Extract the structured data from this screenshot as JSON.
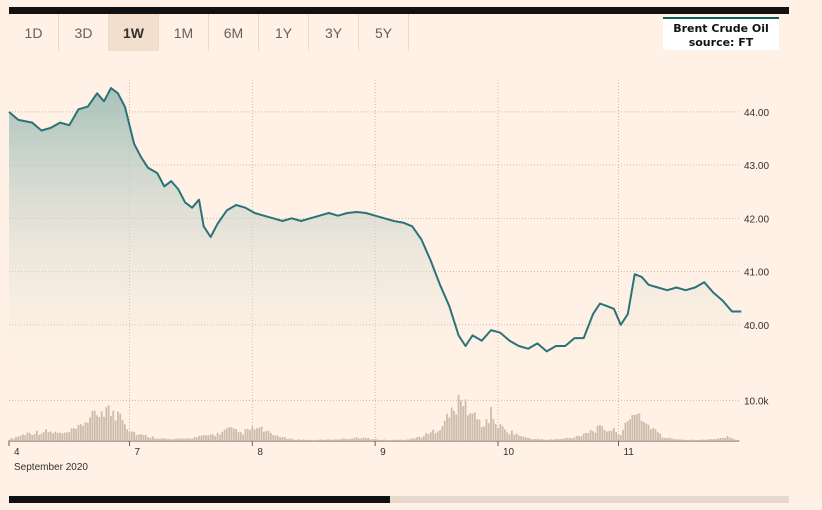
{
  "tabs": [
    {
      "label": "1D",
      "active": false
    },
    {
      "label": "3D",
      "active": false
    },
    {
      "label": "1W",
      "active": true
    },
    {
      "label": "1M",
      "active": false
    },
    {
      "label": "6M",
      "active": false
    },
    {
      "label": "1Y",
      "active": false
    },
    {
      "label": "3Y",
      "active": false
    },
    {
      "label": "5Y",
      "active": false
    }
  ],
  "legend": {
    "line1": "Brent Crude Oil",
    "line2": "source: FT"
  },
  "colors": {
    "line": "#2b7379",
    "area_top": "#9ebcb5",
    "volume": "#cdbcab",
    "background": "#fff1e5"
  },
  "scroll": {
    "position_fraction": 0.488
  },
  "chart_data": {
    "type": "line",
    "y_ticks": [
      {
        "value": 44,
        "label": "44.00"
      },
      {
        "value": 43,
        "label": "43.00"
      },
      {
        "value": 42,
        "label": "42.00"
      },
      {
        "value": 41,
        "label": "41.00"
      },
      {
        "value": 40,
        "label": "40.00"
      }
    ],
    "ylim": [
      39.3,
      44.6
    ],
    "volume_tick": {
      "value": 10000,
      "label": "10.0k"
    },
    "volume_max": 17000,
    "x_ticks": [
      {
        "label": "4",
        "sub": "September 2020",
        "index": 0
      },
      {
        "label": "7",
        "index": 52
      },
      {
        "label": "8",
        "index": 105
      },
      {
        "label": "9",
        "index": 158
      },
      {
        "label": "10",
        "index": 211
      },
      {
        "label": "11",
        "index": 263
      }
    ],
    "x_count": 316,
    "grid": true,
    "series": [
      {
        "values": [
          [
            0,
            44.0
          ],
          [
            4,
            43.85
          ],
          [
            10,
            43.8
          ],
          [
            14,
            43.65
          ],
          [
            18,
            43.7
          ],
          [
            22,
            43.8
          ],
          [
            26,
            43.75
          ],
          [
            30,
            44.05
          ],
          [
            34,
            44.1
          ],
          [
            38,
            44.35
          ],
          [
            41,
            44.2
          ],
          [
            44,
            44.45
          ],
          [
            47,
            44.35
          ],
          [
            50,
            44.1
          ],
          [
            54,
            43.4
          ],
          [
            57,
            43.15
          ],
          [
            60,
            42.95
          ],
          [
            64,
            42.85
          ],
          [
            67,
            42.6
          ],
          [
            70,
            42.7
          ],
          [
            73,
            42.55
          ],
          [
            76,
            42.3
          ],
          [
            79,
            42.2
          ],
          [
            82,
            42.35
          ],
          [
            84,
            41.85
          ],
          [
            87,
            41.65
          ],
          [
            90,
            41.9
          ],
          [
            94,
            42.15
          ],
          [
            98,
            42.25
          ],
          [
            102,
            42.2
          ],
          [
            106,
            42.1
          ],
          [
            110,
            42.05
          ],
          [
            114,
            42.0
          ],
          [
            118,
            41.95
          ],
          [
            122,
            42.0
          ],
          [
            126,
            41.95
          ],
          [
            130,
            42.0
          ],
          [
            134,
            42.05
          ],
          [
            138,
            42.1
          ],
          [
            142,
            42.05
          ],
          [
            146,
            42.1
          ],
          [
            150,
            42.12
          ],
          [
            154,
            42.1
          ],
          [
            158,
            42.05
          ],
          [
            162,
            42.0
          ],
          [
            166,
            41.95
          ],
          [
            170,
            41.92
          ],
          [
            174,
            41.85
          ],
          [
            178,
            41.6
          ],
          [
            182,
            41.2
          ],
          [
            186,
            40.75
          ],
          [
            190,
            40.35
          ],
          [
            194,
            39.8
          ],
          [
            197,
            39.6
          ],
          [
            200,
            39.8
          ],
          [
            204,
            39.7
          ],
          [
            208,
            39.9
          ],
          [
            212,
            39.85
          ],
          [
            216,
            39.7
          ],
          [
            220,
            39.6
          ],
          [
            224,
            39.55
          ],
          [
            228,
            39.65
          ],
          [
            232,
            39.5
          ],
          [
            236,
            39.6
          ],
          [
            240,
            39.6
          ],
          [
            244,
            39.75
          ],
          [
            248,
            39.75
          ],
          [
            252,
            40.2
          ],
          [
            255,
            40.4
          ],
          [
            258,
            40.35
          ],
          [
            261,
            40.3
          ],
          [
            264,
            40.0
          ],
          [
            267,
            40.2
          ],
          [
            270,
            40.95
          ],
          [
            273,
            40.9
          ],
          [
            276,
            40.75
          ],
          [
            280,
            40.7
          ],
          [
            284,
            40.65
          ],
          [
            288,
            40.7
          ],
          [
            292,
            40.65
          ],
          [
            296,
            40.7
          ],
          [
            300,
            40.8
          ],
          [
            304,
            40.6
          ],
          [
            308,
            40.45
          ],
          [
            312,
            40.25
          ],
          [
            316,
            40.25
          ]
        ]
      }
    ],
    "volume": [
      [
        0,
        500
      ],
      [
        8,
        2500
      ],
      [
        16,
        3000
      ],
      [
        24,
        2200
      ],
      [
        30,
        4000
      ],
      [
        34,
        7000
      ],
      [
        38,
        8000
      ],
      [
        40,
        10000
      ],
      [
        42,
        10500
      ],
      [
        44,
        9000
      ],
      [
        46,
        7500
      ],
      [
        48,
        11000
      ],
      [
        50,
        6000
      ],
      [
        52,
        3500
      ],
      [
        56,
        2000
      ],
      [
        60,
        1500
      ],
      [
        64,
        1000
      ],
      [
        70,
        500
      ],
      [
        76,
        800
      ],
      [
        82,
        1300
      ],
      [
        86,
        1800
      ],
      [
        90,
        2200
      ],
      [
        95,
        3800
      ],
      [
        100,
        2500
      ],
      [
        106,
        4000
      ],
      [
        110,
        3500
      ],
      [
        113,
        2000
      ],
      [
        117,
        1500
      ],
      [
        120,
        700
      ],
      [
        126,
        400
      ],
      [
        132,
        300
      ],
      [
        140,
        500
      ],
      [
        148,
        900
      ],
      [
        152,
        1100
      ],
      [
        158,
        500
      ],
      [
        164,
        300
      ],
      [
        170,
        400
      ],
      [
        176,
        1000
      ],
      [
        182,
        2500
      ],
      [
        186,
        4500
      ],
      [
        190,
        8000
      ],
      [
        193,
        11000
      ],
      [
        196,
        12500
      ],
      [
        199,
        9000
      ],
      [
        202,
        7000
      ],
      [
        205,
        5000
      ],
      [
        208,
        8500
      ],
      [
        211,
        5000
      ],
      [
        214,
        3500
      ],
      [
        218,
        2500
      ],
      [
        222,
        1200
      ],
      [
        226,
        700
      ],
      [
        232,
        400
      ],
      [
        238,
        600
      ],
      [
        244,
        1200
      ],
      [
        250,
        3000
      ],
      [
        255,
        4000
      ],
      [
        260,
        3500
      ],
      [
        264,
        2500
      ],
      [
        268,
        6500
      ],
      [
        271,
        10000
      ],
      [
        274,
        6000
      ],
      [
        278,
        4000
      ],
      [
        282,
        1200
      ],
      [
        286,
        800
      ],
      [
        290,
        500
      ],
      [
        294,
        400
      ],
      [
        298,
        400
      ],
      [
        302,
        500
      ],
      [
        306,
        700
      ],
      [
        310,
        1500
      ],
      [
        314,
        300
      ]
    ]
  }
}
